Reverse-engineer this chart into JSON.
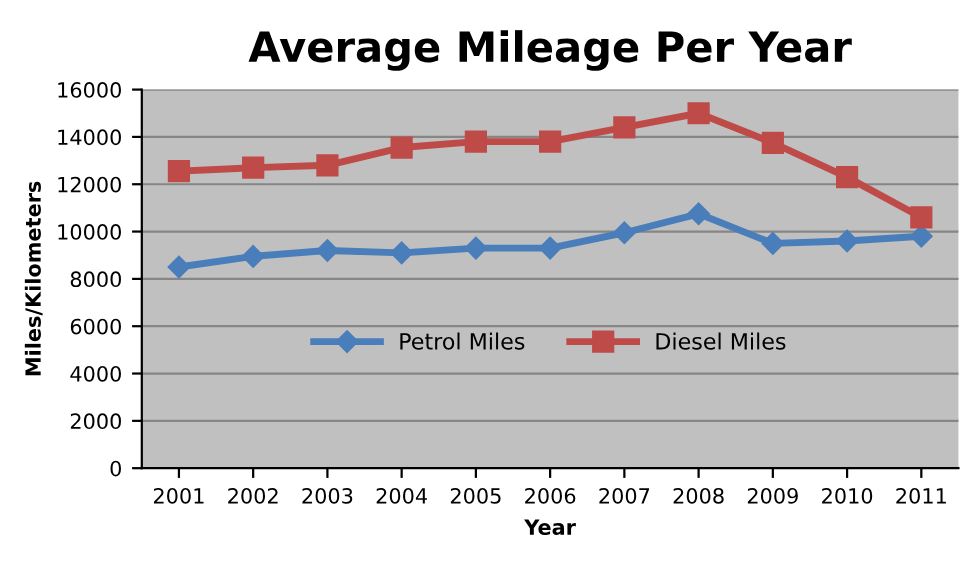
{
  "chart_data": {
    "type": "line",
    "title": "Average Mileage Per Year",
    "xlabel": "Year",
    "ylabel": "Miles/Kilometers",
    "categories": [
      "2001",
      "2002",
      "2003",
      "2004",
      "2005",
      "2006",
      "2007",
      "2008",
      "2009",
      "2010",
      "2011"
    ],
    "series": [
      {
        "name": "Petrol Miles",
        "color": "#4a7ebb",
        "marker": "diamond",
        "values": [
          8500,
          8950,
          9200,
          9100,
          9300,
          9300,
          9950,
          10750,
          9500,
          9600,
          9800
        ]
      },
      {
        "name": "Diesel Miles",
        "color": "#be4b48",
        "marker": "square",
        "values": [
          12550,
          12700,
          12800,
          13550,
          13800,
          13800,
          14400,
          15000,
          13750,
          12300,
          10600
        ]
      }
    ],
    "ylim": [
      0,
      16000
    ],
    "yticks": [
      0,
      2000,
      4000,
      6000,
      8000,
      10000,
      12000,
      14000,
      16000
    ],
    "grid": "y",
    "legend": "center"
  }
}
